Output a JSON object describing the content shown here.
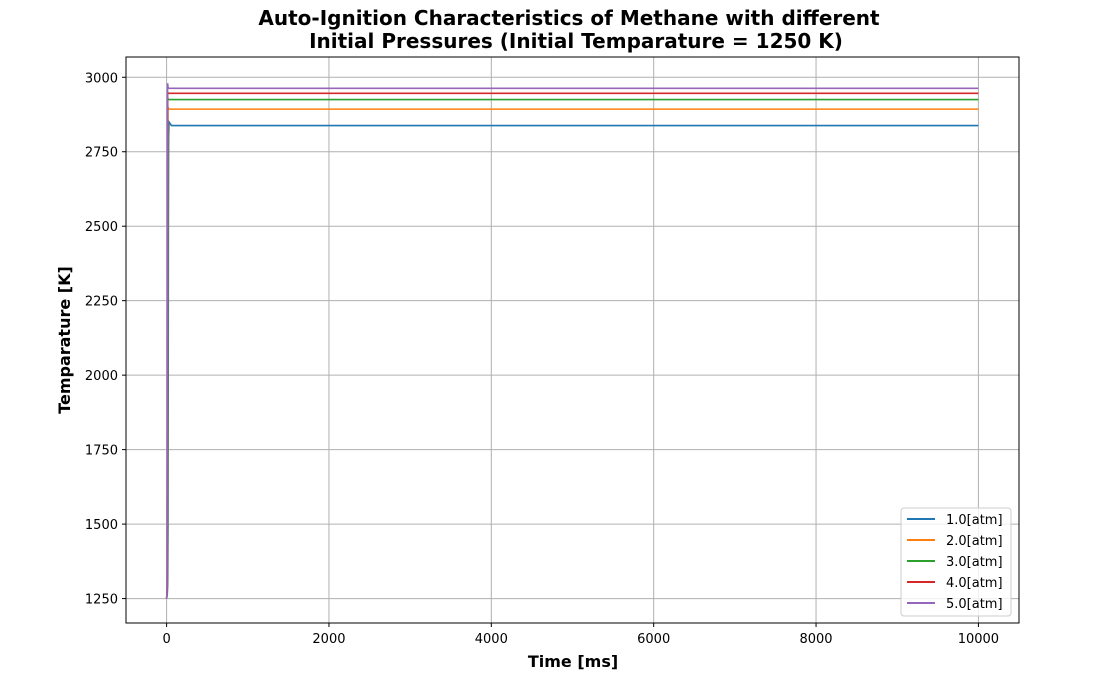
{
  "chart_data": {
    "type": "line",
    "title": "Auto-Ignition Characteristics of Methane with different",
    "subtitle": "Initial Pressures (Initial Temparature = 1250 K)",
    "xlabel": "Time [ms]",
    "ylabel": "Temparature [K]",
    "xlim": [
      -500,
      10500
    ],
    "ylim": [
      1168,
      3068
    ],
    "xticks": [
      0,
      2000,
      4000,
      6000,
      8000,
      10000
    ],
    "yticks": [
      1250,
      1500,
      1750,
      2000,
      2250,
      2500,
      2750,
      3000
    ],
    "grid": true,
    "legend_position": "lower-right",
    "series": [
      {
        "name": "1.0[atm]",
        "color": "#1f77b4",
        "points": [
          [
            0,
            1250
          ],
          [
            8,
            1262
          ],
          [
            14,
            1300
          ],
          [
            18,
            1500
          ],
          [
            20,
            2000
          ],
          [
            22,
            2500
          ],
          [
            25,
            2800
          ],
          [
            30,
            2850
          ],
          [
            60,
            2838
          ],
          [
            10000,
            2838
          ]
        ]
      },
      {
        "name": "2.0[atm]",
        "color": "#ff7f0e",
        "points": [
          [
            0,
            1250
          ],
          [
            6,
            1262
          ],
          [
            10,
            1300
          ],
          [
            13,
            1700
          ],
          [
            15,
            2400
          ],
          [
            17,
            2900
          ],
          [
            25,
            2893
          ],
          [
            10000,
            2893
          ]
        ]
      },
      {
        "name": "3.0[atm]",
        "color": "#2ca02c",
        "points": [
          [
            0,
            1250
          ],
          [
            5,
            1262
          ],
          [
            8,
            1300
          ],
          [
            10,
            1800
          ],
          [
            12,
            2600
          ],
          [
            14,
            2930
          ],
          [
            22,
            2925
          ],
          [
            10000,
            2925
          ]
        ]
      },
      {
        "name": "4.0[atm]",
        "color": "#d62728",
        "points": [
          [
            0,
            1250
          ],
          [
            4,
            1262
          ],
          [
            7,
            1300
          ],
          [
            9,
            1900
          ],
          [
            11,
            2700
          ],
          [
            13,
            2950
          ],
          [
            20,
            2946
          ],
          [
            10000,
            2946
          ]
        ]
      },
      {
        "name": "5.0[atm]",
        "color": "#9467bd",
        "points": [
          [
            0,
            1250
          ],
          [
            3,
            1262
          ],
          [
            6,
            1300
          ],
          [
            8,
            2000
          ],
          [
            10,
            2800
          ],
          [
            12,
            2980
          ],
          [
            20,
            2963
          ],
          [
            10000,
            2963
          ]
        ]
      }
    ]
  }
}
